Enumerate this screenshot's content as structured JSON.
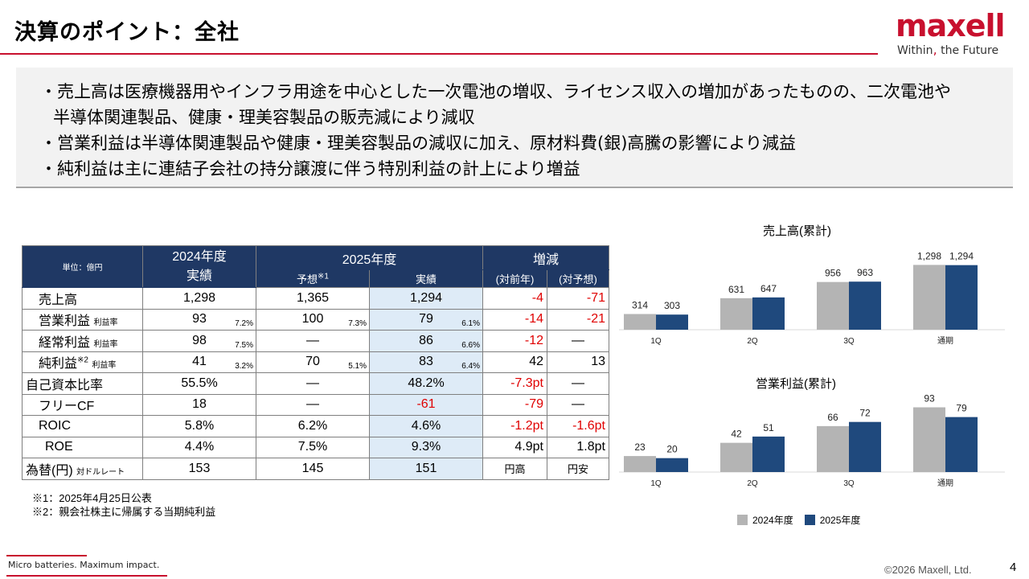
{
  "header": {
    "title": "決算のポイント：全社",
    "logo_word": "maxell",
    "logo_tag_left": "Within",
    "logo_tag_mark": ",",
    "logo_tag_right": "the Future"
  },
  "summary": {
    "lines": [
      "・売上高は医療機器用やインフラ用途を中心とした一次電池の増収、ライセンス収入の増加があったものの、二次電池や",
      "半導体関連製品、健康・理美容製品の販売減により減収",
      "・営業利益は半導体関連製品や健康・理美容製品の減収に加え、原材料費(銀)高騰の影響により減益",
      "・純利益は主に連結子会社の持分譲渡に伴う特別利益の計上により増益"
    ]
  },
  "table": {
    "unit": "単位：億円",
    "col_2024": "2024年度",
    "col_2024_sub": "実績",
    "col_2025": "2025年度",
    "col_forecast": "予想",
    "col_forecast_mark": "※1",
    "col_actual": "実績",
    "col_change": "増減",
    "col_yoy": "(対前年)",
    "col_vs_forecast": "(対予想)",
    "margin_label": "利益率",
    "fx_sub": "対ドルレート",
    "rows": {
      "sales": {
        "label": "売上高",
        "y2024": "1,298",
        "forecast": "1,365",
        "actual": "1,294",
        "yoy": "-4",
        "vs": "-71"
      },
      "op": {
        "label": "営業利益",
        "y2024": "93",
        "y2024_m": "7.2%",
        "forecast": "100",
        "forecast_m": "7.3%",
        "actual": "79",
        "actual_m": "6.1%",
        "yoy": "-14",
        "vs": "-21"
      },
      "ord": {
        "label": "経常利益",
        "y2024": "98",
        "y2024_m": "7.5%",
        "forecast": "—",
        "actual": "86",
        "actual_m": "6.6%",
        "yoy": "-12",
        "vs": "—"
      },
      "net": {
        "label": "純利益",
        "label_mark": "※2",
        "y2024": "41",
        "y2024_m": "3.2%",
        "forecast": "70",
        "forecast_m": "5.1%",
        "actual": "83",
        "actual_m": "6.4%",
        "yoy": "42",
        "vs": "13"
      },
      "equity": {
        "label": "自己資本比率",
        "y2024": "55.5%",
        "forecast": "—",
        "actual": "48.2%",
        "yoy": "-7.3pt",
        "vs": "—"
      },
      "fcf": {
        "label": "フリーCF",
        "y2024": "18",
        "forecast": "—",
        "actual": "-61",
        "yoy": "-79",
        "vs": "—"
      },
      "roic": {
        "label": "ROIC",
        "y2024": "5.8%",
        "forecast": "6.2%",
        "actual": "4.6%",
        "yoy": "-1.2pt",
        "vs": "-1.6pt"
      },
      "roe": {
        "label": "ROE",
        "y2024": "4.4%",
        "forecast": "7.5%",
        "actual": "9.3%",
        "yoy": "4.9pt",
        "vs": "1.8pt"
      },
      "fx": {
        "label": "為替(円)",
        "y2024": "153",
        "forecast": "145",
        "actual": "151",
        "yoy": "円高",
        "vs": "円安"
      }
    }
  },
  "notes": [
    "※1：2025年4月25日公表",
    "※2：親会社株主に帰属する当期純利益"
  ],
  "legend": {
    "a": "2024年度",
    "b": "2025年度"
  },
  "colors": {
    "brand_red": "#c8102e",
    "navy": "#1f3864",
    "bar_2024": "#b4b4b4",
    "bar_2025": "#1f497d",
    "highlight": "#deebf7",
    "negative": "#e00000"
  },
  "chart_data": [
    {
      "type": "bar",
      "title": "売上高(累計)",
      "categories": [
        "1Q",
        "2Q",
        "3Q",
        "通期"
      ],
      "series": [
        {
          "name": "2024年度",
          "values": [
            314,
            631,
            956,
            1298
          ]
        },
        {
          "name": "2025年度",
          "values": [
            303,
            647,
            963,
            1294
          ]
        }
      ],
      "ylim": [
        0,
        1450
      ],
      "data_labels": true,
      "legend": "bottom"
    },
    {
      "type": "bar",
      "title": "営業利益(累計)",
      "categories": [
        "1Q",
        "2Q",
        "3Q",
        "通期"
      ],
      "series": [
        {
          "name": "2024年度",
          "values": [
            23,
            42,
            66,
            93
          ]
        },
        {
          "name": "2025年度",
          "values": [
            20,
            51,
            72,
            79
          ]
        }
      ],
      "ylim": [
        0,
        104
      ],
      "data_labels": true,
      "legend": "bottom"
    }
  ],
  "footer": {
    "slogan": "Micro batteries. Maximum impact.",
    "copyright": "©2026 Maxell, Ltd.",
    "page": "4"
  }
}
